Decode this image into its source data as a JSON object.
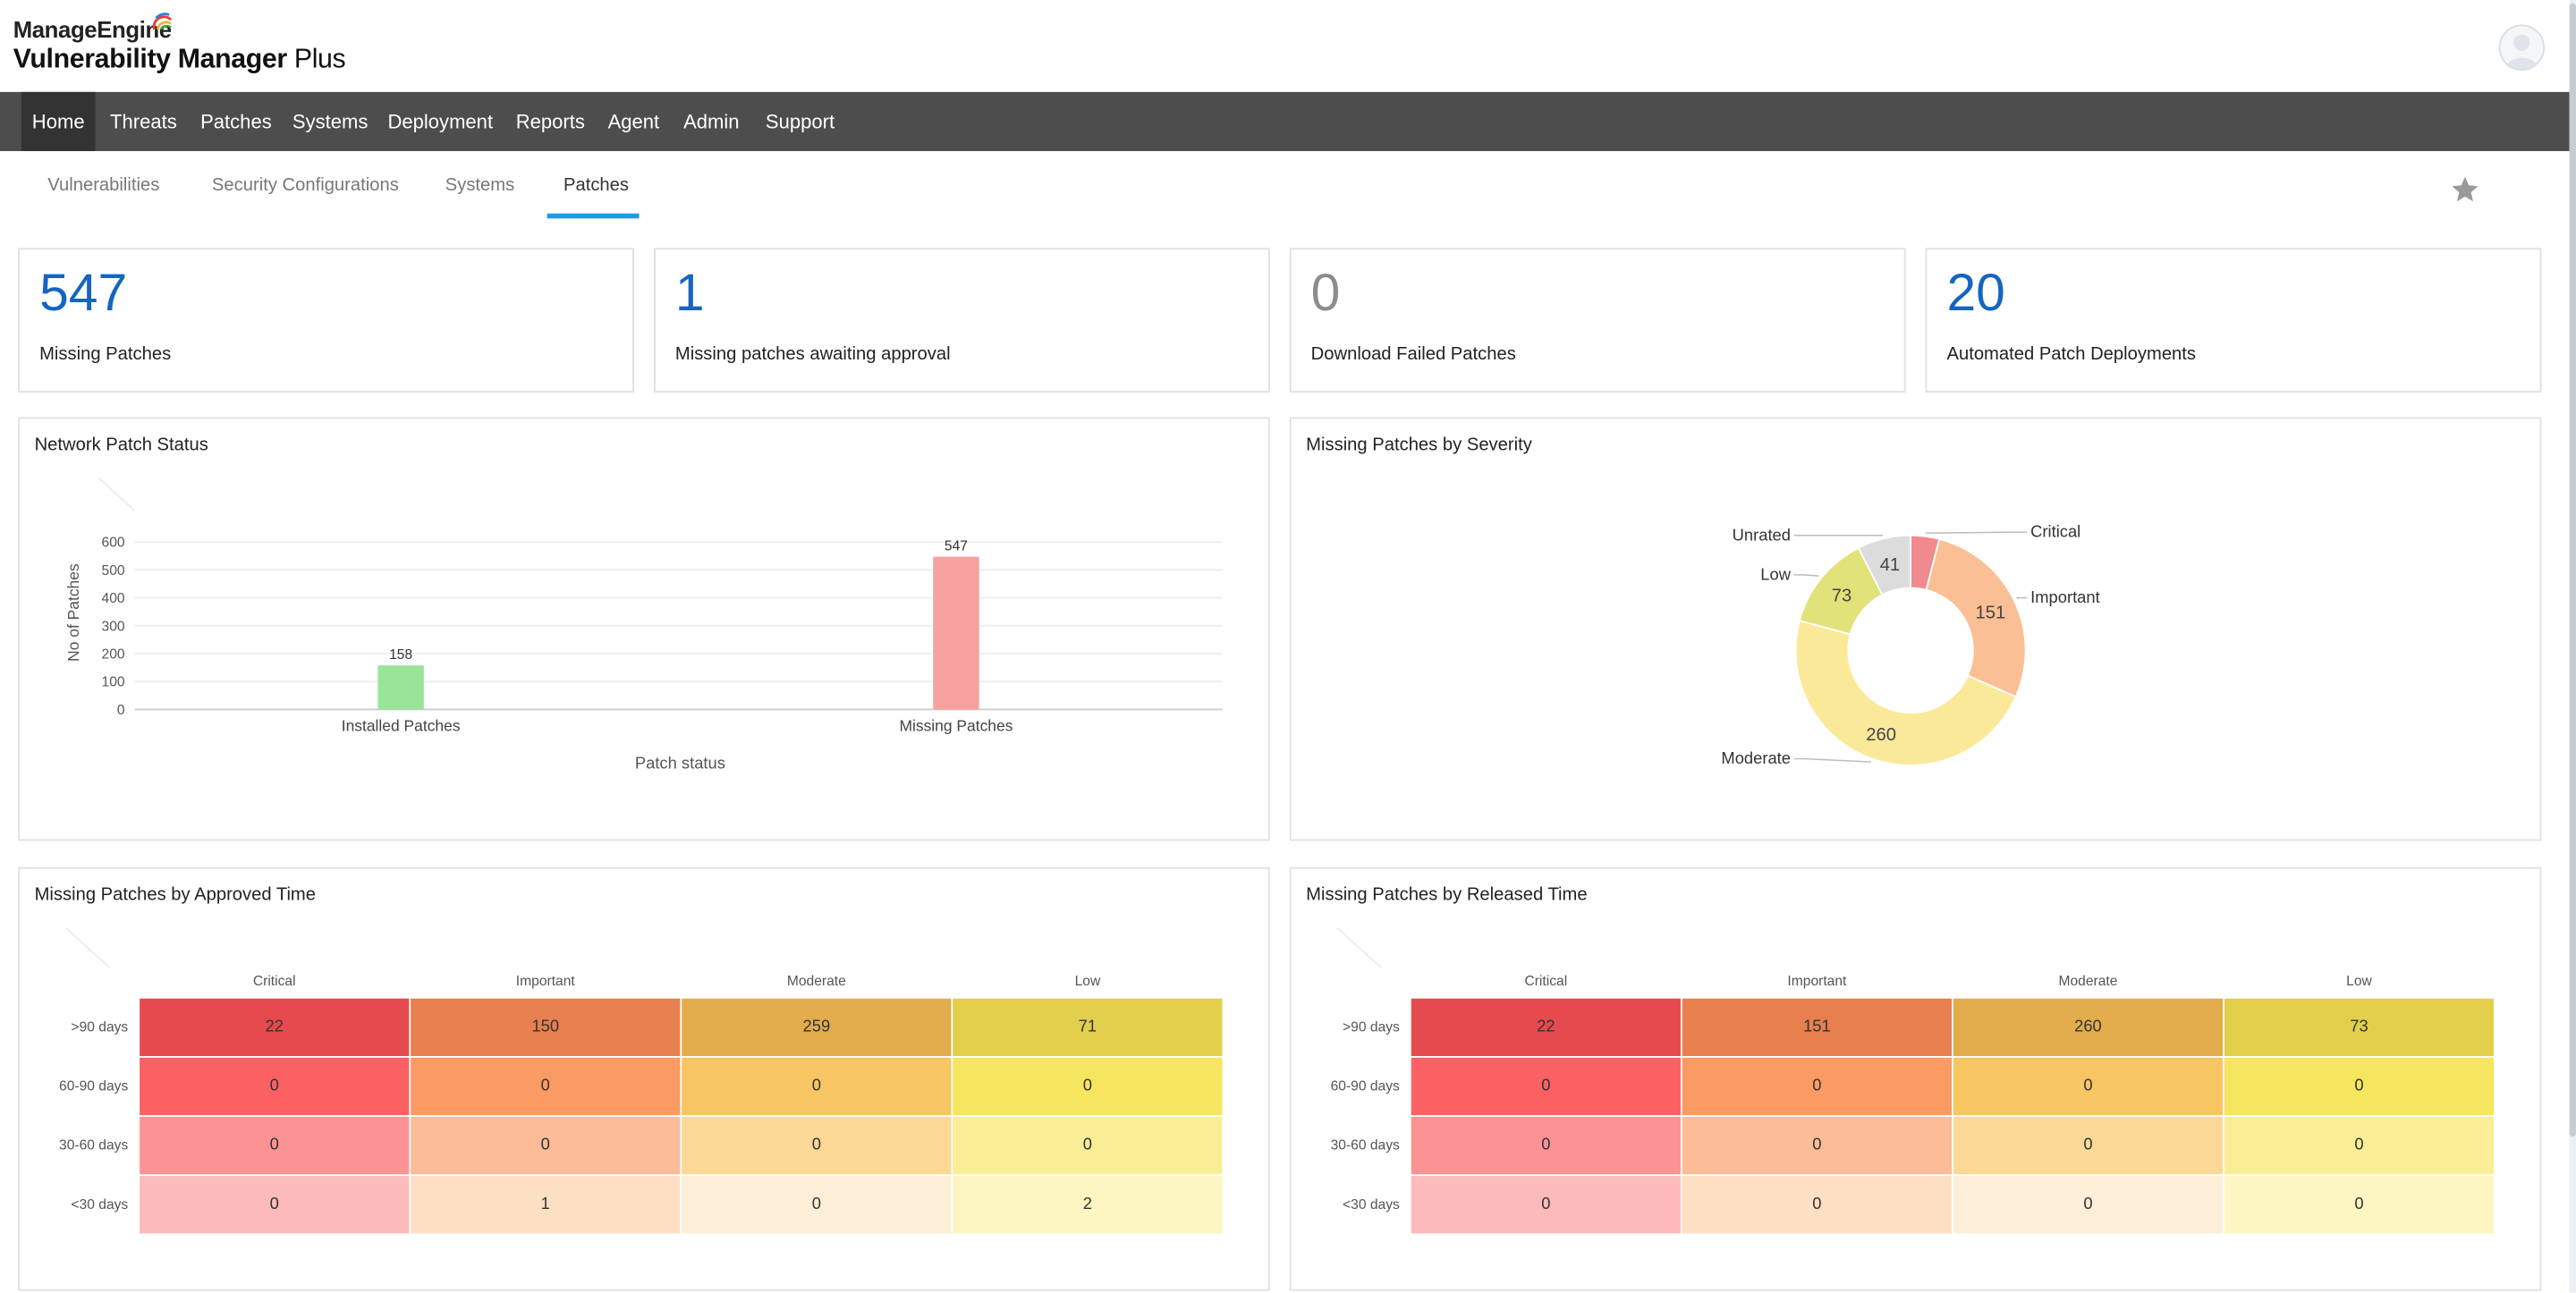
{
  "header": {
    "brand": "ManageEngine",
    "product_bold": "Vulnerability Manager",
    "product_light": " Plus",
    "avatar_icon": "user-avatar-icon"
  },
  "nav": {
    "items": [
      "Home",
      "Threats",
      "Patches",
      "Systems",
      "Deployment",
      "Reports",
      "Agent",
      "Admin",
      "Support"
    ],
    "active": "Home"
  },
  "subtabs": {
    "items": [
      "Vulnerabilities",
      "Security Configurations",
      "Systems",
      "Patches"
    ],
    "active": "Patches",
    "favorite_icon": "star-icon"
  },
  "stats": [
    {
      "value": "547",
      "label": "Missing Patches"
    },
    {
      "value": "1",
      "label": "Missing patches awaiting approval"
    },
    {
      "value": "0",
      "label": "Download Failed Patches"
    },
    {
      "value": "20",
      "label": "Automated Patch Deployments"
    }
  ],
  "colors": {
    "accent": "#1e9be6",
    "stat_blue": "#1565c0",
    "nav_bg": "#4d4d4d",
    "installed_bar": "#98e59a",
    "missing_bar": "#f7a0a0"
  },
  "panels": {
    "network": "Network Patch Status",
    "severity": "Missing Patches by Severity",
    "approved": "Missing Patches by Approved Time",
    "released": "Missing Patches by Released Time"
  },
  "chart_data": [
    {
      "type": "bar",
      "title": "Network Patch Status",
      "categories": [
        "Installed Patches",
        "Missing Patches"
      ],
      "values": [
        158,
        547
      ],
      "xlabel": "Patch status",
      "ylabel": "No of Patches",
      "yticks": [
        0,
        100,
        200,
        300,
        400,
        500,
        600
      ],
      "ylim": [
        0,
        600
      ],
      "colors": [
        "#98e59a",
        "#f7a0a0"
      ]
    },
    {
      "type": "pie",
      "title": "Missing Patches by Severity",
      "labels": [
        "Critical",
        "Important",
        "Moderate",
        "Low",
        "Unrated"
      ],
      "values": [
        22,
        151,
        260,
        73,
        41
      ],
      "colors": [
        "#f08a8e",
        "#fbbf95",
        "#fbe99a",
        "#e2e27a",
        "#dcdcdc"
      ]
    },
    {
      "type": "heatmap",
      "title": "Missing Patches by Approved Time",
      "columns": [
        "Critical",
        "Important",
        "Moderate",
        "Low"
      ],
      "rows": [
        ">90 days",
        "60-90 days",
        "30-60 days",
        "<30 days"
      ],
      "values": [
        [
          22,
          150,
          259,
          71
        ],
        [
          0,
          0,
          0,
          0
        ],
        [
          0,
          0,
          0,
          0
        ],
        [
          0,
          1,
          0,
          2
        ]
      ]
    },
    {
      "type": "heatmap",
      "title": "Missing Patches by Released Time",
      "columns": [
        "Critical",
        "Important",
        "Moderate",
        "Low"
      ],
      "rows": [
        ">90 days",
        "60-90 days",
        "30-60 days",
        "<30 days"
      ],
      "values": [
        [
          22,
          151,
          260,
          73
        ],
        [
          0,
          0,
          0,
          0
        ],
        [
          0,
          0,
          0,
          0
        ],
        [
          0,
          0,
          0,
          0
        ]
      ]
    }
  ],
  "heatmap_colors": [
    [
      "#e54b4e",
      "#e77f4f",
      "#e3ac4d",
      "#e3cf4c"
    ],
    [
      "#fb6063",
      "#fa9b63",
      "#f8c563",
      "#f6e55f"
    ],
    [
      "#fb9293",
      "#fbbc97",
      "#fbd896",
      "#f9ee95"
    ],
    [
      "#fdbabb",
      "#fde0c3",
      "#fdeed8",
      "#fdf6c2"
    ]
  ]
}
